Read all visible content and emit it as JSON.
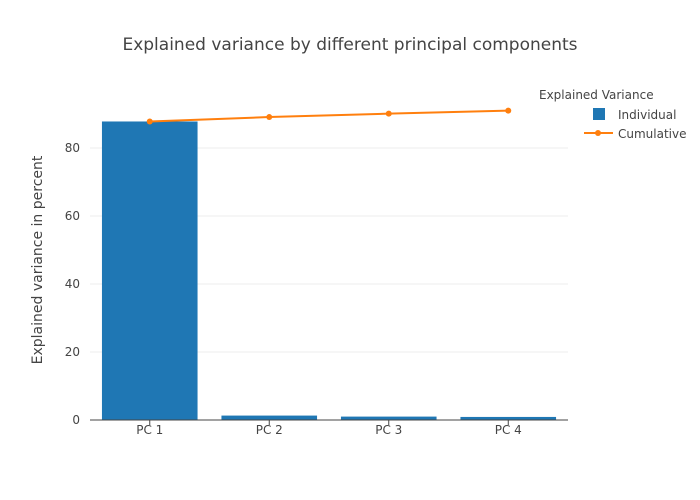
{
  "chart_data": {
    "type": "bar",
    "title": "Explained variance by different principal components",
    "xlabel": "",
    "ylabel": "Explained variance in percent",
    "categories": [
      "PC 1",
      "PC 2",
      "PC 3",
      "PC 4"
    ],
    "ylim": [
      0,
      100
    ],
    "yticks": [
      0,
      20,
      40,
      60,
      80
    ],
    "grid": true,
    "legend": {
      "title": "Explained Variance",
      "placement": "top-right"
    },
    "series": [
      {
        "name": "Individual",
        "type": "bar",
        "color": "#1f77b4",
        "values": [
          87.8,
          1.3,
          1.0,
          0.9
        ]
      },
      {
        "name": "Cumulative",
        "type": "line",
        "color": "#ff7f0e",
        "values": [
          87.8,
          89.1,
          90.1,
          91.0
        ]
      }
    ]
  }
}
